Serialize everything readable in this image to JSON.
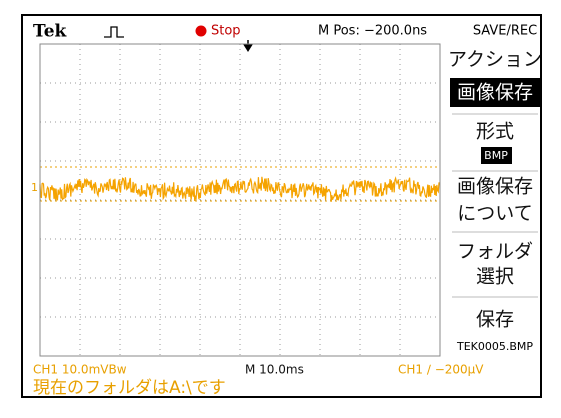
{
  "header": {
    "brand": "Tek",
    "status": "Stop",
    "position": "M Pos: −200.0ns",
    "menu_title": "SAVE/REC"
  },
  "menu": [
    "アクション",
    "画像保存",
    "形式",
    "BMP",
    "画像保存",
    "について",
    "フォルダ",
    "選択",
    "保存",
    "TEK0005.BMP"
  ],
  "channel_marker": "1",
  "footer": {
    "channel": "CH1  10.0mVBw",
    "timebase": "M 10.0ms",
    "trigger": "CH1 ∕ −200μV",
    "message": "現在のフォルダはA:\\です"
  }
}
